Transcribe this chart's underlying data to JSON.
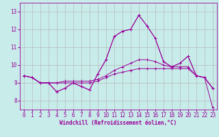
{
  "xlabel": "Windchill (Refroidissement éolien,°C)",
  "xlim": [
    -0.5,
    23.5
  ],
  "ylim": [
    7.5,
    13.5
  ],
  "yticks": [
    8,
    9,
    10,
    11,
    12,
    13
  ],
  "xticks": [
    0,
    1,
    2,
    3,
    4,
    5,
    6,
    7,
    8,
    9,
    10,
    11,
    12,
    13,
    14,
    15,
    16,
    17,
    18,
    19,
    20,
    21,
    22,
    23
  ],
  "bg_color": "#c8ecea",
  "line_color": "#990099",
  "grid_color": "#b0b0b0",
  "series": [
    [
      9.4,
      9.3,
      9.0,
      9.0,
      8.5,
      8.7,
      9.0,
      8.8,
      8.6,
      9.5,
      10.3,
      11.6,
      11.9,
      12.0,
      12.8,
      12.2,
      11.5,
      10.2,
      9.9,
      10.1,
      10.5,
      9.4,
      9.3,
      8.7
    ],
    [
      9.4,
      9.3,
      9.0,
      9.0,
      9.0,
      9.0,
      9.0,
      9.0,
      9.0,
      9.1,
      9.3,
      9.5,
      9.6,
      9.7,
      9.8,
      9.8,
      9.8,
      9.8,
      9.8,
      9.8,
      9.8,
      9.4,
      9.3,
      8.7
    ],
    [
      9.4,
      9.3,
      9.0,
      9.0,
      9.0,
      9.1,
      9.1,
      9.1,
      9.1,
      9.2,
      9.4,
      9.7,
      9.9,
      10.1,
      10.3,
      10.3,
      10.2,
      10.0,
      9.9,
      9.9,
      9.9,
      9.4,
      9.3,
      8.7
    ],
    [
      9.4,
      9.3,
      9.0,
      9.0,
      8.5,
      8.7,
      9.0,
      8.8,
      8.6,
      9.5,
      10.3,
      11.6,
      11.9,
      12.0,
      12.8,
      12.2,
      11.5,
      10.2,
      9.9,
      10.1,
      10.5,
      9.4,
      9.3,
      7.6
    ]
  ],
  "tick_fontsize": 5.5,
  "xlabel_fontsize": 5.5
}
